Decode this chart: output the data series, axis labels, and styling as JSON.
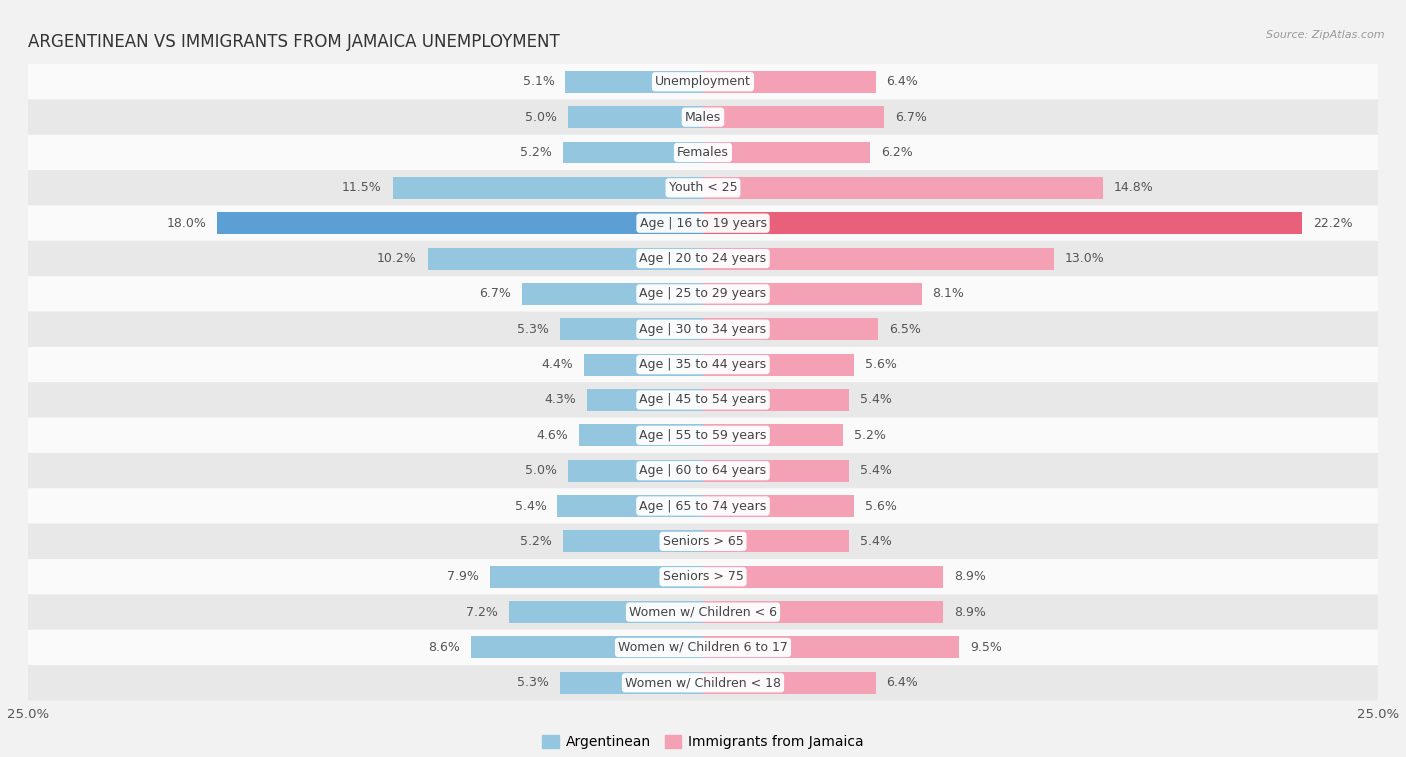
{
  "title": "ARGENTINEAN VS IMMIGRANTS FROM JAMAICA UNEMPLOYMENT",
  "source": "Source: ZipAtlas.com",
  "categories": [
    "Unemployment",
    "Males",
    "Females",
    "Youth < 25",
    "Age | 16 to 19 years",
    "Age | 20 to 24 years",
    "Age | 25 to 29 years",
    "Age | 30 to 34 years",
    "Age | 35 to 44 years",
    "Age | 45 to 54 years",
    "Age | 55 to 59 years",
    "Age | 60 to 64 years",
    "Age | 65 to 74 years",
    "Seniors > 65",
    "Seniors > 75",
    "Women w/ Children < 6",
    "Women w/ Children 6 to 17",
    "Women w/ Children < 18"
  ],
  "argentinean": [
    5.1,
    5.0,
    5.2,
    11.5,
    18.0,
    10.2,
    6.7,
    5.3,
    4.4,
    4.3,
    4.6,
    5.0,
    5.4,
    5.2,
    7.9,
    7.2,
    8.6,
    5.3
  ],
  "jamaica": [
    6.4,
    6.7,
    6.2,
    14.8,
    22.2,
    13.0,
    8.1,
    6.5,
    5.6,
    5.4,
    5.2,
    5.4,
    5.6,
    5.4,
    8.9,
    8.9,
    9.5,
    6.4
  ],
  "arg_color": "#94c6e0",
  "jam_color": "#f4a0b5",
  "arg_highlight_color": "#5b9fd4",
  "jam_highlight_color": "#e8607a",
  "highlight_row": 4,
  "xlim": 25.0,
  "background_color": "#f2f2f2",
  "row_bg_light": "#fafafa",
  "row_bg_dark": "#e8e8e8",
  "bar_height": 0.62,
  "label_fontsize": 9.0,
  "value_fontsize": 9.0,
  "title_fontsize": 12,
  "legend_fontsize": 10
}
